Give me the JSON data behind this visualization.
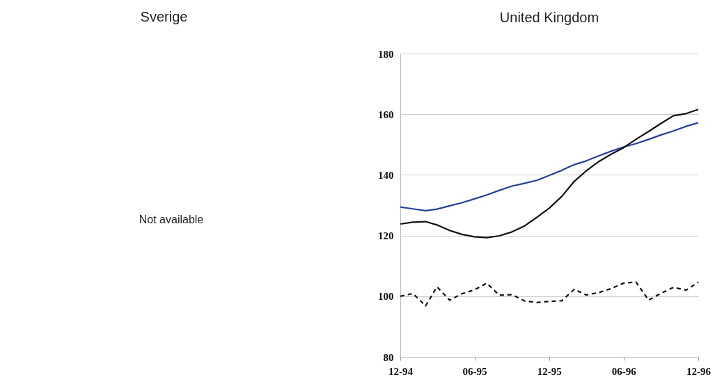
{
  "chart_data": [
    {
      "type": "other",
      "title": "Sverige",
      "annotations": [
        "Not available"
      ]
    },
    {
      "type": "line",
      "title": "United Kingdom",
      "x": [
        "1994-12",
        "1995-01",
        "1995-02",
        "1995-03",
        "1995-04",
        "1995-05",
        "1995-06",
        "1995-07",
        "1995-08",
        "1995-09",
        "1995-10",
        "1995-11",
        "1995-12",
        "1996-01",
        "1996-02",
        "1996-03",
        "1996-04",
        "1996-05",
        "1996-06",
        "1996-07",
        "1996-08",
        "1996-09",
        "1996-10",
        "1996-11",
        "1996-12"
      ],
      "series": [
        {
          "color": "#2a3f98",
          "values": [
            129.4,
            128.8,
            128.2,
            128.7,
            129.8,
            130.8,
            132.1,
            133.4,
            134.9,
            136.3,
            137.2,
            138.2,
            139.8,
            141.5,
            143.4,
            144.6,
            146.3,
            147.8,
            149.2,
            150.3,
            151.7,
            153.2,
            154.5,
            156,
            157.2
          ]
        },
        {
          "color": "#111111",
          "values": [
            123.8,
            124.4,
            124.6,
            123.5,
            121.7,
            120.4,
            119.6,
            119.3,
            119.9,
            121.2,
            123.1,
            126,
            129,
            132.9,
            137.9,
            141.3,
            144.4,
            146.8,
            149,
            151.7,
            154.3,
            157,
            159.5,
            160.2,
            161.6
          ]
        },
        {
          "color": "#111111",
          "line_style": "dashed",
          "values": [
            100,
            100.9,
            96.8,
            103.1,
            98.7,
            100.8,
            102.1,
            104.3,
            100.3,
            100.5,
            98.5,
            97.9,
            98.3,
            98.5,
            102.3,
            100.4,
            101.2,
            102.5,
            104.3,
            104.7,
            98.7,
            101,
            102.9,
            102,
            104.6
          ]
        }
      ],
      "xlim": [
        "1994-12",
        "1996-12"
      ],
      "xticks": [
        {
          "value": "1994-12",
          "label": "12-94"
        },
        {
          "value": "1995-06",
          "label": "06-95"
        },
        {
          "value": "1995-12",
          "label": "12-95"
        },
        {
          "value": "1996-06",
          "label": "06-96"
        },
        {
          "value": "1996-12",
          "label": "12-96"
        }
      ],
      "ylim": [
        80,
        180
      ],
      "yticks": [
        80,
        100,
        120,
        140,
        160,
        180
      ],
      "grid": "y"
    }
  ]
}
